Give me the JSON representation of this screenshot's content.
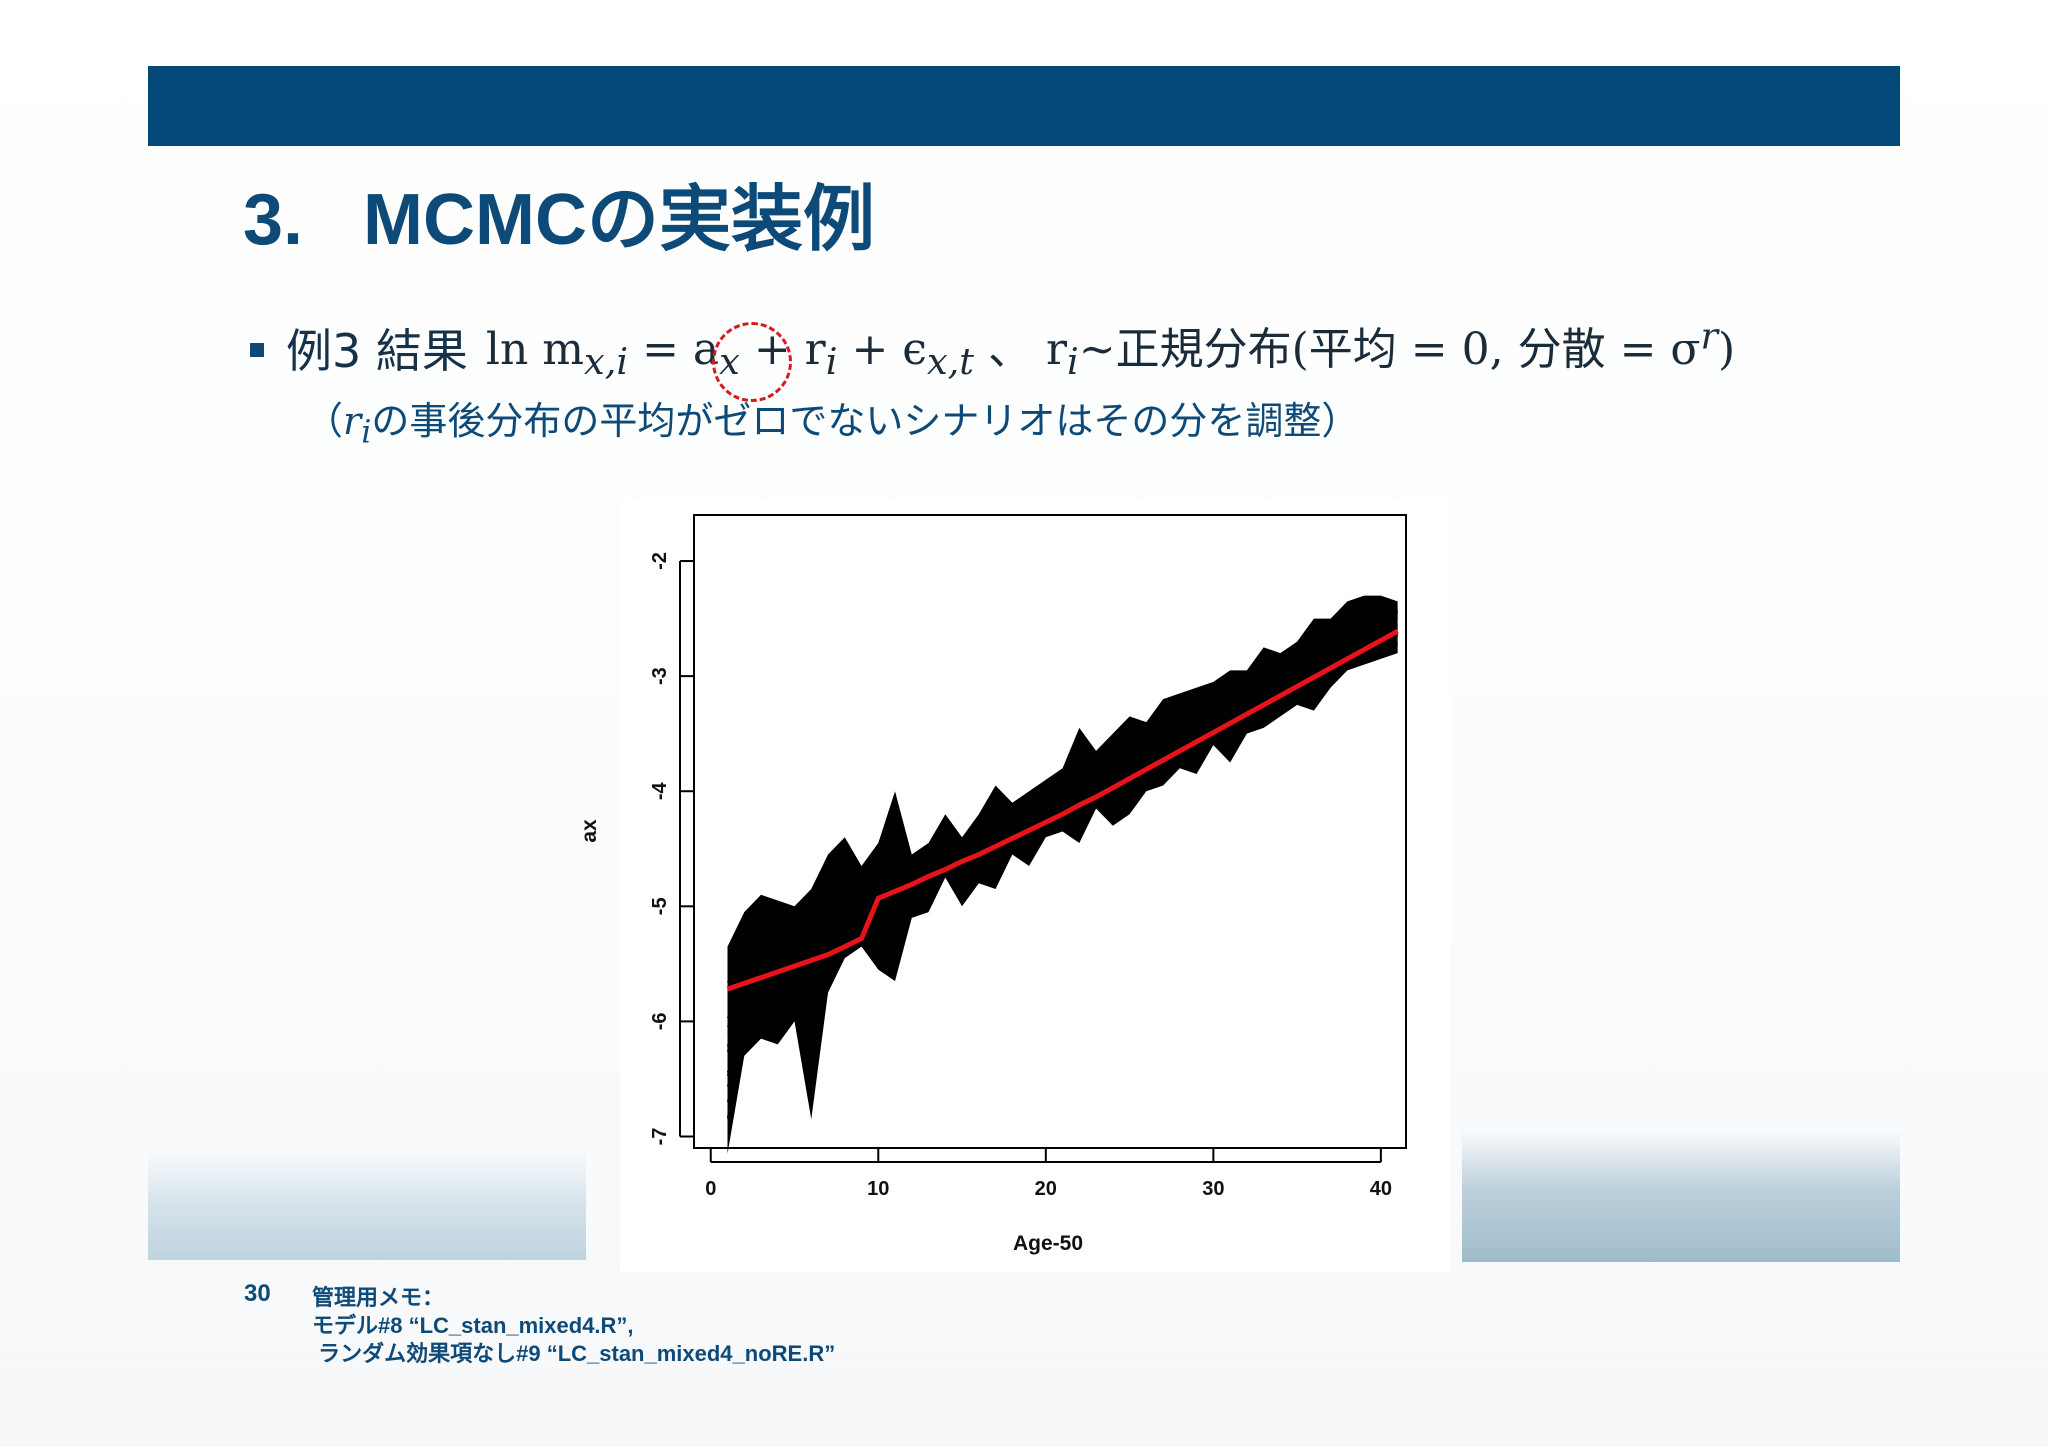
{
  "slide": {
    "title_number": "3.",
    "title_text": "MCMCの実装例",
    "bullet_label": "例3 結果",
    "formula_main": "ln m",
    "formula_sub": "x,i",
    "formula_rest": " = a",
    "formula_ax_sub": "x",
    "formula_tail": " + r",
    "formula_ri_sub": "i",
    "formula_eps": " + ϵ",
    "formula_eps_sub": "x,t",
    "formula_sep": " 、 r",
    "formula_r2_sub": "i",
    "formula_dist": "~正規分布(平均 = 0, 分散 = σ",
    "formula_sup": "r",
    "formula_close": ")",
    "note_open": "（",
    "note_var": "r",
    "note_var_sub": "i",
    "note_text": "の事後分布の平均がゼロでないシナリオはその分を調整）",
    "page_number": "30",
    "memo_lines": [
      "管理用メモ：",
      "モデル#8 “LC_stan_mixed4.R”,",
      " ランダム効果項なし#9 “LC_stan_mixed4_noRE.R”"
    ],
    "colors": {
      "header_bar": "#024978",
      "title": "#0d4a78",
      "highlight_circle": "#d8191f",
      "mean_line": "#e8121a",
      "samples": "#000000"
    }
  },
  "chart_data": {
    "type": "line",
    "xlabel": "Age-50",
    "ylabel": "ax",
    "xlim": [
      -1,
      41.5
    ],
    "ylim": [
      -7.1,
      -1.6
    ],
    "x_ticks": [
      0,
      10,
      20,
      30,
      40
    ],
    "x_tick_labels": [
      "0",
      "10",
      "20",
      "30",
      "40"
    ],
    "y_ticks": [
      -7,
      -6,
      -5,
      -4,
      -3,
      -2
    ],
    "y_tick_labels": [
      "-7",
      "-6",
      "-5",
      "-4",
      "-3",
      "-2"
    ],
    "grid": false,
    "series": [
      {
        "role": "posterior mean (red)",
        "x": [
          1,
          2,
          3,
          4,
          5,
          6,
          7,
          8,
          9,
          10,
          11,
          12,
          13,
          14,
          15,
          16,
          17,
          18,
          19,
          20,
          21,
          22,
          23,
          24,
          25,
          26,
          27,
          28,
          29,
          30,
          31,
          32,
          33,
          34,
          35,
          36,
          37,
          38,
          39,
          40,
          41
        ],
        "values": [
          -5.72,
          -5.67,
          -5.62,
          -5.57,
          -5.52,
          -5.47,
          -5.42,
          -5.35,
          -5.28,
          -4.93,
          -4.87,
          -4.81,
          -4.74,
          -4.68,
          -4.61,
          -4.55,
          -4.48,
          -4.41,
          -4.34,
          -4.27,
          -4.2,
          -4.12,
          -4.05,
          -3.97,
          -3.89,
          -3.81,
          -3.73,
          -3.65,
          -3.57,
          -3.49,
          -3.41,
          -3.33,
          -3.25,
          -3.17,
          -3.09,
          -3.01,
          -2.93,
          -2.85,
          -2.77,
          -2.69,
          -2.61
        ]
      },
      {
        "role": "MCMC samples band upper (black)",
        "x": [
          1,
          2,
          3,
          4,
          5,
          6,
          7,
          8,
          9,
          10,
          11,
          12,
          13,
          14,
          15,
          16,
          17,
          18,
          19,
          20,
          21,
          22,
          23,
          24,
          25,
          26,
          27,
          28,
          29,
          30,
          31,
          32,
          33,
          34,
          35,
          36,
          37,
          38,
          39,
          40,
          41
        ],
        "values": [
          -5.35,
          -5.05,
          -4.9,
          -4.95,
          -5.0,
          -4.85,
          -4.55,
          -4.4,
          -4.65,
          -4.45,
          -4.0,
          -4.55,
          -4.45,
          -4.2,
          -4.4,
          -4.2,
          -3.95,
          -4.1,
          -4.0,
          -3.9,
          -3.8,
          -3.45,
          -3.65,
          -3.5,
          -3.35,
          -3.4,
          -3.2,
          -3.15,
          -3.1,
          -3.05,
          -2.95,
          -2.95,
          -2.75,
          -2.8,
          -2.7,
          -2.5,
          -2.5,
          -2.35,
          -2.3,
          -2.3,
          -2.35
        ]
      },
      {
        "role": "MCMC samples band lower (black)",
        "x": [
          1,
          2,
          3,
          4,
          5,
          6,
          7,
          8,
          9,
          10,
          11,
          12,
          13,
          14,
          15,
          16,
          17,
          18,
          19,
          20,
          21,
          22,
          23,
          24,
          25,
          26,
          27,
          28,
          29,
          30,
          31,
          32,
          33,
          34,
          35,
          36,
          37,
          38,
          39,
          40,
          41
        ],
        "values": [
          -7.15,
          -6.3,
          -6.15,
          -6.2,
          -6.0,
          -6.85,
          -5.75,
          -5.45,
          -5.35,
          -5.55,
          -5.65,
          -5.1,
          -5.05,
          -4.75,
          -5.0,
          -4.8,
          -4.85,
          -4.55,
          -4.65,
          -4.4,
          -4.35,
          -4.45,
          -4.15,
          -4.3,
          -4.2,
          -4.0,
          -3.95,
          -3.8,
          -3.85,
          -3.6,
          -3.75,
          -3.5,
          -3.45,
          -3.35,
          -3.25,
          -3.3,
          -3.1,
          -2.95,
          -2.9,
          -2.85,
          -2.8
        ]
      }
    ]
  }
}
